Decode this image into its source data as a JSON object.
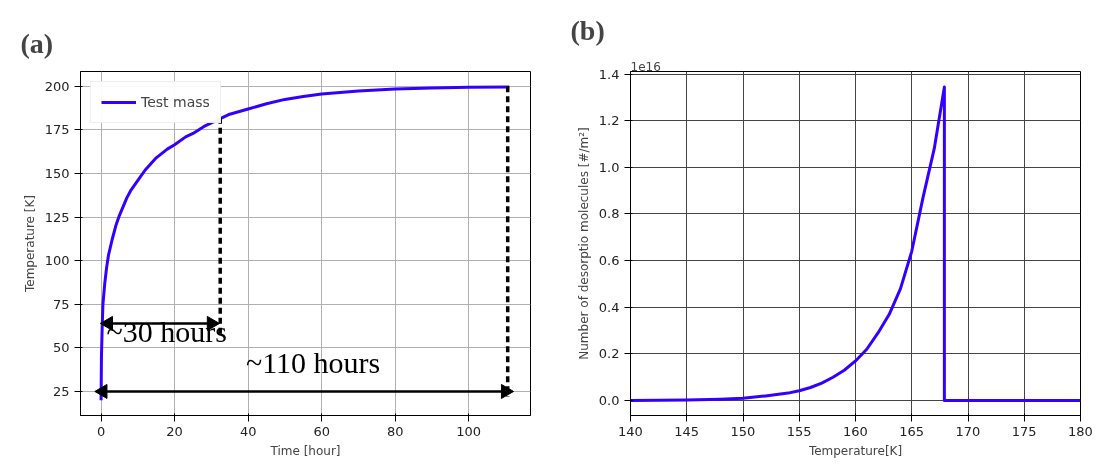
{
  "chart_data": [
    {
      "type": "line",
      "title": "(a)",
      "xlabel": "Time [hour]",
      "ylabel": "Temperature [K]",
      "xlim": [
        -5.6,
        116.8
      ],
      "ylim": [
        11.2,
        208.5
      ],
      "xticks": [
        0,
        20,
        40,
        60,
        80,
        100
      ],
      "yticks": [
        25,
        50,
        75,
        100,
        125,
        150,
        175,
        200
      ],
      "grid": true,
      "legend": "top left",
      "series": [
        {
          "name": "Test mass",
          "color": "#3300ff",
          "x": [
            0,
            0.1,
            0.3,
            0.5,
            1,
            1.5,
            2,
            3,
            4,
            5,
            6,
            7,
            8,
            10,
            12,
            15,
            18,
            20,
            23,
            25,
            28,
            30,
            33,
            35,
            40,
            45,
            50,
            55,
            60,
            70,
            80,
            90,
            100,
            111
          ],
          "values": [
            20,
            45,
            62,
            75,
            87,
            96,
            103,
            112,
            120,
            126,
            131,
            136,
            140,
            146,
            152,
            159,
            164,
            166.5,
            171,
            173,
            177,
            179,
            182,
            184,
            187,
            190,
            192.5,
            194.2,
            195.6,
            197.3,
            198.4,
            199,
            199.4,
            199.6
          ]
        },
        {
          "type": "line",
          "line_style": "dashed",
          "color": "#000000",
          "x": [
            32.4,
            32.4
          ],
          "values": [
            182,
            57
          ]
        },
        {
          "type": "line",
          "line_style": "dashed",
          "color": "#000000",
          "x": [
            110.6,
            110.6
          ],
          "values": [
            200,
            22
          ]
        },
        {
          "type": "line",
          "marker": "triangle",
          "color": "#000000",
          "x": [
            2,
            30
          ],
          "values": [
            64,
            64
          ]
        },
        {
          "type": "line",
          "marker": "triangle",
          "color": "#000000",
          "x": [
            0.5,
            110
          ],
          "values": [
            25,
            25
          ]
        }
      ],
      "annotations": [
        "~30 hours",
        "~110 hours"
      ]
    },
    {
      "type": "line",
      "title": "(b)",
      "xlabel": "Temperature[K]",
      "ylabel": "Number of desorptio molecules [#/m²]",
      "xlim": [
        140,
        180
      ],
      "ylim": [
        -0.064,
        1.411
      ],
      "xticks": [
        140,
        145,
        150,
        155,
        160,
        165,
        170,
        175,
        180
      ],
      "yticks": [
        {
          "value": 0,
          "label": "0.0"
        },
        {
          "value": 0.2,
          "label": "0.2"
        },
        {
          "value": 0.4,
          "label": "0.4"
        },
        {
          "value": 0.6,
          "label": "0.6"
        },
        {
          "value": 0.8,
          "label": "0.8"
        },
        {
          "value": 1.0,
          "label": "1.0"
        },
        {
          "value": 1.2,
          "label": "1.2"
        },
        {
          "value": 1.4,
          "label": "1.4"
        }
      ],
      "grid": true,
      "series": [
        {
          "color": "#3300ff",
          "x": [
            140,
            145,
            148,
            150,
            152,
            154,
            155,
            156,
            157,
            158,
            159,
            160,
            161,
            162,
            163,
            164,
            165,
            166,
            167,
            167.9,
            167.9,
            180
          ],
          "values": [
            0,
            0.002,
            0.006,
            0.01,
            0.02,
            0.032,
            0.042,
            0.056,
            0.075,
            0.1,
            0.13,
            0.17,
            0.22,
            0.29,
            0.37,
            0.48,
            0.64,
            0.87,
            1.08,
            1.345,
            0,
            0
          ]
        }
      ],
      "annotations": [
        "1e16"
      ]
    }
  ]
}
